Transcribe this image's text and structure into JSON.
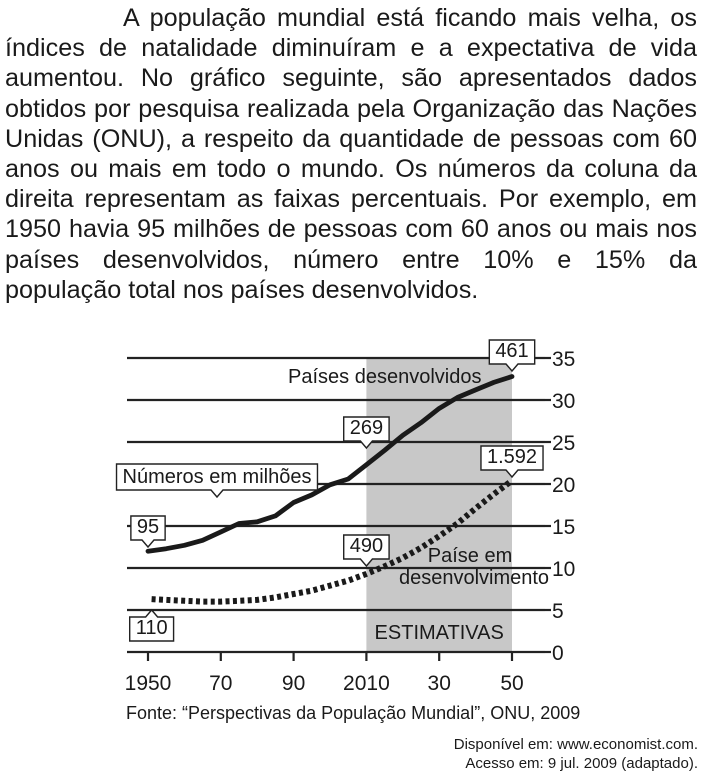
{
  "question": {
    "text": "A população mundial está ficando mais velha, os índices de natalidade diminuíram e a expectativa de vida aumentou. No gráfico seguinte, são apresentados dados obtidos por pesquisa realizada pela Organização das Nações Unidas (ONU), a respeito da quantidade de pessoas com 60 anos ou mais em todo o mundo. Os números da coluna da direita representam as faixas percentuais. Por exemplo, em 1950 havia 95 milhões de pessoas com 60 anos ou mais nos países desenvolvidos, número entre 10% e 15% da população total nos países desenvolvidos."
  },
  "chart_data": {
    "type": "line",
    "x_ticks": [
      1950,
      1970,
      1990,
      2010,
      2030,
      2050
    ],
    "x_tick_labels": [
      "1950",
      "70",
      "90",
      "2010",
      "30",
      "50"
    ],
    "y_ticks": [
      0,
      5,
      10,
      15,
      20,
      25,
      30,
      35
    ],
    "y_tick_labels": [
      "0",
      "5",
      "10",
      "15",
      "20",
      "25",
      "30",
      "35"
    ],
    "xlim": [
      1950,
      2050
    ],
    "ylim": [
      0,
      35
    ],
    "grid": "horizontal",
    "y_axis_side": "right",
    "shaded_region": {
      "from": 2010,
      "to": 2050,
      "label": "ESTIMATIVAS",
      "color": "#c8c8c8"
    },
    "units_label": "Números em milhões",
    "source": "Fonte: “Perspectivas da População Mundial”, ONU, 2009",
    "series": [
      {
        "name": "Países desenvolvidos",
        "style": "solid",
        "x": [
          1950,
          1955,
          1960,
          1965,
          1970,
          1975,
          1980,
          1985,
          1990,
          1995,
          2000,
          2005,
          2010,
          2015,
          2020,
          2025,
          2030,
          2035,
          2040,
          2045,
          2050
        ],
        "y": [
          12,
          12.3,
          12.7,
          13.3,
          14.3,
          15.3,
          15.5,
          16.2,
          17.8,
          18.7,
          19.9,
          20.6,
          22.3,
          24,
          25.8,
          27.3,
          29,
          30.3,
          31.2,
          32.1,
          32.8
        ],
        "callouts": [
          {
            "x": 1950,
            "y": 12,
            "label": "95"
          },
          {
            "x": 2010,
            "y": 22.3,
            "label": "269"
          },
          {
            "x": 2050,
            "y": 32.8,
            "label": "461"
          }
        ]
      },
      {
        "name": "Paíse em desenvolvimento",
        "style": "dotted",
        "x": [
          1951,
          1955,
          1960,
          1965,
          1970,
          1975,
          1980,
          1985,
          1990,
          1995,
          2000,
          2005,
          2010,
          2015,
          2020,
          2025,
          2030,
          2035,
          2040,
          2045,
          2050
        ],
        "y": [
          6.3,
          6.2,
          6.1,
          6.0,
          6.0,
          6.1,
          6.2,
          6.5,
          6.9,
          7.3,
          7.9,
          8.5,
          9.3,
          10.2,
          11.2,
          12.4,
          13.8,
          15.3,
          17.1,
          18.8,
          20.4
        ],
        "callouts": [
          {
            "x": 1951,
            "y": 6.3,
            "label": "110"
          },
          {
            "x": 2010,
            "y": 9.3,
            "label": "490"
          },
          {
            "x": 2050,
            "y": 20.4,
            "label": "1.592"
          }
        ]
      }
    ]
  },
  "credit": {
    "line1": "Disponível em: www.economist.com.",
    "line2": "Acesso em: 9 jul. 2009 (adaptado)."
  }
}
